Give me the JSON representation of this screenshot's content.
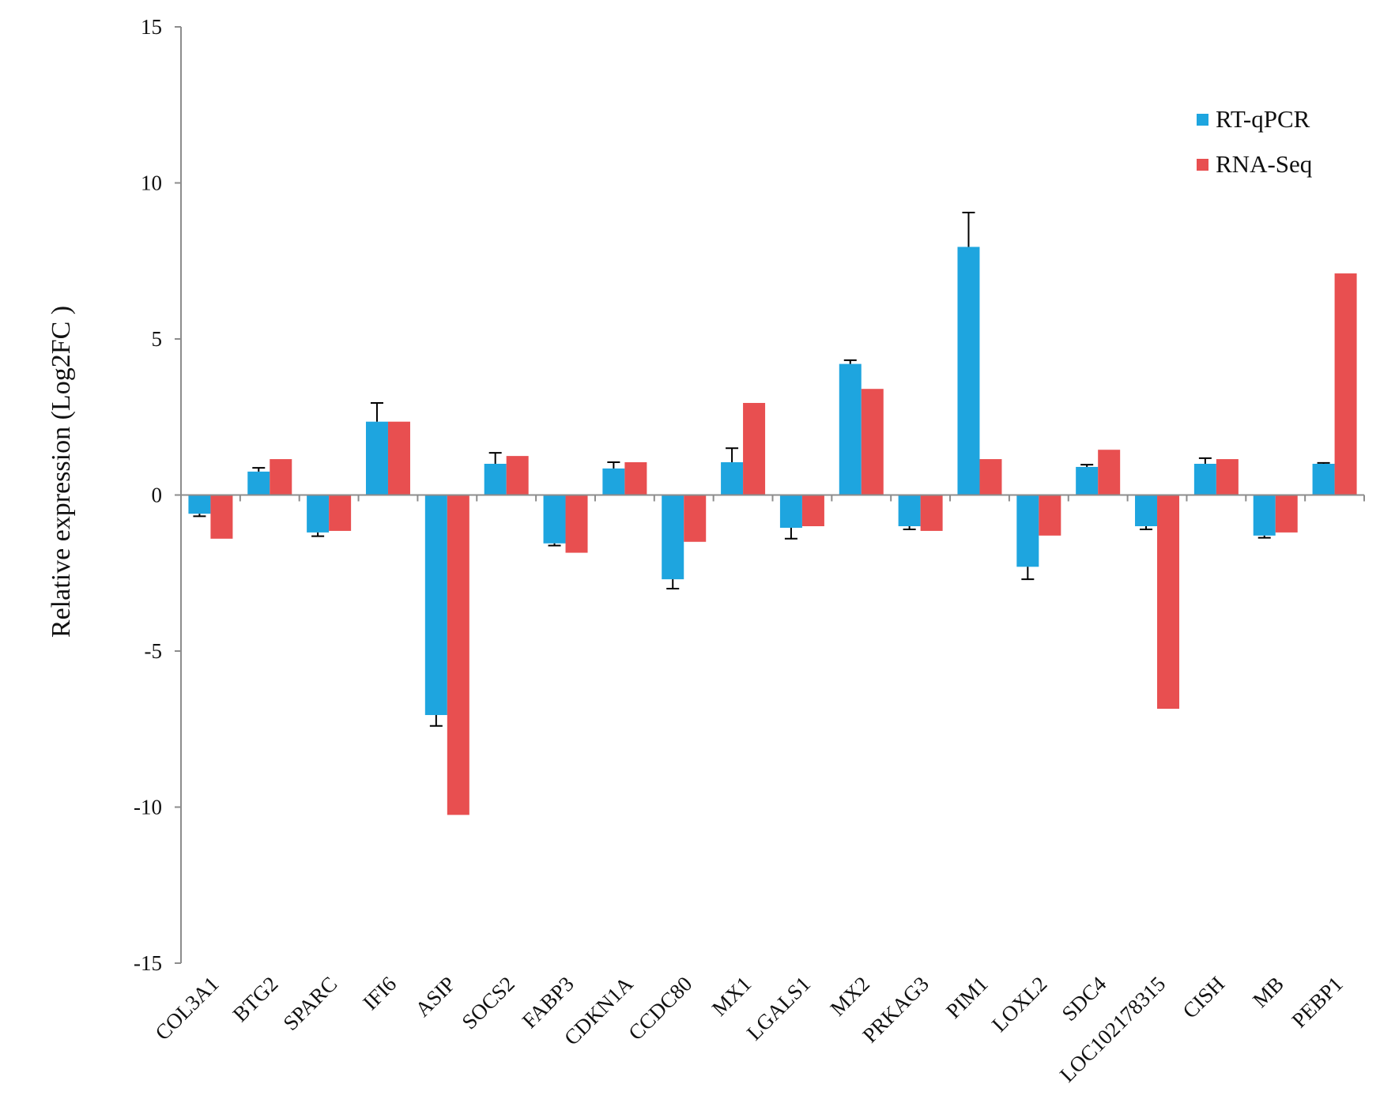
{
  "chart_data": {
    "type": "bar",
    "title": "",
    "xlabel": "",
    "ylabel": "Relative expression (Log2FC )",
    "ylim": [
      -15,
      15
    ],
    "yticks": [
      15,
      10,
      5,
      0,
      -5,
      -10,
      -15
    ],
    "grid": false,
    "legend_position": "top-right",
    "categories": [
      "COL3A1",
      "BTG2",
      "SPARC",
      "IFI6",
      "ASIP",
      "SOCS2",
      "FABP3",
      "CDKN1A",
      "CCDC80",
      "MX1",
      "LGALS1",
      "MX2",
      "PRKAG3",
      "PIM1",
      "LOXL2",
      "SDC4",
      "LOC102178315",
      "CISH",
      "MB",
      "PEBP1"
    ],
    "series": [
      {
        "name": "RT-qPCR",
        "color": "#1ea5df",
        "values": [
          -0.6,
          0.75,
          -1.2,
          2.35,
          -7.05,
          1.0,
          -1.55,
          0.85,
          -2.7,
          1.05,
          -1.05,
          4.2,
          -1.0,
          7.95,
          -2.3,
          0.9,
          -1.0,
          1.0,
          -1.3,
          1.0
        ],
        "errors": [
          0.08,
          0.12,
          0.12,
          0.6,
          0.35,
          0.35,
          0.07,
          0.2,
          0.3,
          0.45,
          0.35,
          0.12,
          0.1,
          1.1,
          0.4,
          0.07,
          0.1,
          0.18,
          0.07,
          0.03
        ]
      },
      {
        "name": "RNA-Seq",
        "color": "#e84f50",
        "values": [
          -1.4,
          1.15,
          -1.15,
          2.35,
          -10.25,
          1.25,
          -1.85,
          1.05,
          -1.5,
          2.95,
          -1.0,
          3.4,
          -1.15,
          1.15,
          -1.3,
          1.45,
          -6.85,
          1.15,
          -1.2,
          7.1
        ]
      }
    ]
  }
}
